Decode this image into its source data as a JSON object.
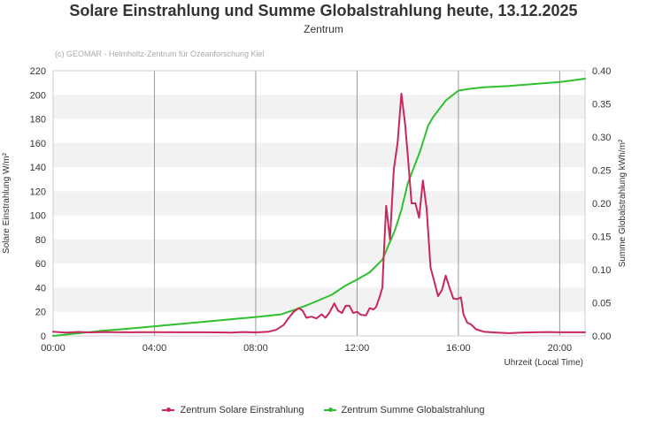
{
  "chart_data": {
    "type": "line",
    "title": "Solare Einstrahlung und Summe Globalstrahlung heute, 13.12.2025",
    "subtitle": "Zentrum",
    "credits": "(c) GEOMAR - Helmholtz-Zentrum für Ozeanforschung Kiel",
    "xlabel": "Uhrzeit (Local Time)",
    "ylabel_left": "Solare Einstrahlung W/m²",
    "ylabel_right": "Summe Globalstrahlung kWh/m²",
    "x_ticks": [
      "00:00",
      "04:00",
      "08:00",
      "12:00",
      "16:00",
      "20:00"
    ],
    "xlim_hours": [
      0,
      21
    ],
    "ylim_left": [
      0,
      220
    ],
    "ylim_right": [
      0,
      0.4
    ],
    "y_ticks_left": [
      "0",
      "20",
      "40",
      "60",
      "80",
      "100",
      "120",
      "140",
      "160",
      "180",
      "200",
      "220"
    ],
    "y_ticks_right": [
      "0.00",
      "0.05",
      "0.10",
      "0.15",
      "0.20",
      "0.25",
      "0.30",
      "0.35",
      "0.40"
    ],
    "series": [
      {
        "name": "Zentrum Solare Einstrahlung",
        "axis": "left",
        "color": "#c8285a",
        "points": [
          [
            0,
            3.5
          ],
          [
            0.5,
            2.8
          ],
          [
            1,
            3.3
          ],
          [
            1.5,
            2.9
          ],
          [
            2,
            3.2
          ],
          [
            3,
            3.0
          ],
          [
            4,
            3.1
          ],
          [
            5,
            3.0
          ],
          [
            6,
            3.0
          ],
          [
            7,
            2.8
          ],
          [
            7.5,
            3.2
          ],
          [
            8,
            2.9
          ],
          [
            8.5,
            3.5
          ],
          [
            8.8,
            5
          ],
          [
            9.1,
            9
          ],
          [
            9.3,
            15
          ],
          [
            9.5,
            20
          ],
          [
            9.7,
            23
          ],
          [
            9.85,
            21
          ],
          [
            10.0,
            15
          ],
          [
            10.2,
            16
          ],
          [
            10.4,
            14.5
          ],
          [
            10.6,
            18
          ],
          [
            10.75,
            15
          ],
          [
            10.9,
            19
          ],
          [
            11.1,
            27
          ],
          [
            11.25,
            21
          ],
          [
            11.4,
            19
          ],
          [
            11.55,
            25
          ],
          [
            11.7,
            25
          ],
          [
            11.85,
            19
          ],
          [
            12.0,
            20
          ],
          [
            12.15,
            17.5
          ],
          [
            12.35,
            17
          ],
          [
            12.5,
            23
          ],
          [
            12.65,
            22
          ],
          [
            12.75,
            24
          ],
          [
            12.9,
            33
          ],
          [
            13.0,
            40
          ],
          [
            13.05,
            65
          ],
          [
            13.15,
            108
          ],
          [
            13.3,
            80
          ],
          [
            13.45,
            138
          ],
          [
            13.6,
            160
          ],
          [
            13.75,
            201
          ],
          [
            13.9,
            175
          ],
          [
            14.0,
            150
          ],
          [
            14.15,
            110
          ],
          [
            14.3,
            110
          ],
          [
            14.45,
            98
          ],
          [
            14.6,
            129
          ],
          [
            14.75,
            105
          ],
          [
            14.9,
            57
          ],
          [
            15.05,
            45
          ],
          [
            15.2,
            33
          ],
          [
            15.35,
            38
          ],
          [
            15.5,
            50
          ],
          [
            15.65,
            40
          ],
          [
            15.8,
            31
          ],
          [
            15.95,
            30.5
          ],
          [
            16.1,
            32
          ],
          [
            16.2,
            18
          ],
          [
            16.35,
            11
          ],
          [
            16.5,
            9.5
          ],
          [
            16.7,
            5.5
          ],
          [
            17.0,
            3.5
          ],
          [
            17.5,
            2.8
          ],
          [
            18,
            2.3
          ],
          [
            18.5,
            2.8
          ],
          [
            19,
            3.0
          ],
          [
            19.5,
            3.2
          ],
          [
            20,
            3.0
          ],
          [
            20.5,
            3.0
          ],
          [
            21,
            3.0
          ]
        ]
      },
      {
        "name": "Zentrum Summe Globalstrahlung",
        "axis": "right",
        "color": "#2ec02e",
        "points": [
          [
            0,
            0.0
          ],
          [
            1,
            0.004
          ],
          [
            2,
            0.008
          ],
          [
            3,
            0.011
          ],
          [
            4,
            0.0145
          ],
          [
            5,
            0.018
          ],
          [
            6,
            0.0215
          ],
          [
            7,
            0.025
          ],
          [
            8,
            0.0285
          ],
          [
            9,
            0.0325
          ],
          [
            9.5,
            0.039
          ],
          [
            10,
            0.046
          ],
          [
            10.5,
            0.054
          ],
          [
            11,
            0.062
          ],
          [
            11.5,
            0.075
          ],
          [
            12,
            0.085
          ],
          [
            12.5,
            0.096
          ],
          [
            13,
            0.115
          ],
          [
            13.5,
            0.16
          ],
          [
            13.75,
            0.19
          ],
          [
            14,
            0.23
          ],
          [
            14.5,
            0.28
          ],
          [
            14.8,
            0.317
          ],
          [
            15,
            0.33
          ],
          [
            15.5,
            0.355
          ],
          [
            16,
            0.37
          ],
          [
            16.5,
            0.373
          ],
          [
            17,
            0.375
          ],
          [
            18,
            0.377
          ],
          [
            19,
            0.38
          ],
          [
            20,
            0.383
          ],
          [
            21,
            0.388
          ]
        ]
      }
    ],
    "grid": true,
    "legend_position": "bottom-center"
  }
}
